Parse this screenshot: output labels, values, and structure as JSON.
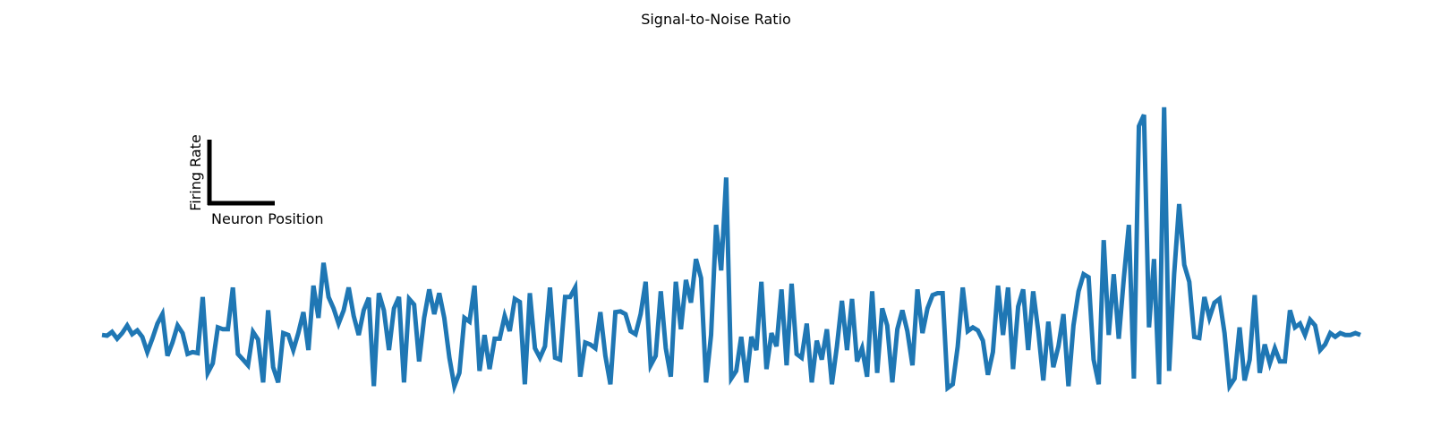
{
  "chart_data": {
    "type": "line",
    "title": "Signal-to-Noise Ratio",
    "xlabel": "Neuron Position",
    "ylabel": "Firing Rate",
    "axes_visible": false,
    "grid": false,
    "legend": "none",
    "scale_bar": {
      "x_label": "Neuron Position",
      "y_label": "Firing Rate",
      "color": "#000000",
      "placement": "upper-left"
    },
    "xlim": [
      0,
      250
    ],
    "ylim": [
      -1.6,
      7.6
    ],
    "series": [
      {
        "color": "#1f77b4",
        "x": [
          0,
          1,
          2,
          3,
          4,
          5,
          6,
          7,
          8,
          9,
          10,
          11,
          12,
          13,
          14,
          15,
          16,
          17,
          18,
          19,
          20,
          21,
          22,
          23,
          24,
          25,
          26,
          27,
          28,
          29,
          30,
          31,
          32,
          33,
          34,
          35,
          36,
          37,
          38,
          39,
          40,
          41,
          42,
          43,
          44,
          45,
          46,
          47,
          48,
          49,
          50,
          51,
          52,
          53,
          54,
          55,
          56,
          57,
          58,
          59,
          60,
          61,
          62,
          63,
          64,
          65,
          66,
          67,
          68,
          69,
          70,
          71,
          72,
          73,
          74,
          75,
          76,
          77,
          78,
          79,
          80,
          81,
          82,
          83,
          84,
          85,
          86,
          87,
          88,
          89,
          90,
          91,
          92,
          93,
          94,
          95,
          96,
          97,
          98,
          99,
          100,
          101,
          102,
          103,
          104,
          105,
          106,
          107,
          108,
          109,
          110,
          111,
          112,
          113,
          114,
          115,
          116,
          117,
          118,
          119,
          120,
          121,
          122,
          123,
          124,
          125,
          126,
          127,
          128,
          129,
          130,
          131,
          132,
          133,
          134,
          135,
          136,
          137,
          138,
          139,
          140,
          141,
          142,
          143,
          144,
          145,
          146,
          147,
          148,
          149,
          150,
          151,
          152,
          153,
          154,
          155,
          156,
          157,
          158,
          159,
          160,
          161,
          162,
          163,
          164,
          165,
          166,
          167,
          168,
          169,
          170,
          171,
          172,
          173,
          174,
          175,
          176,
          177,
          178,
          179,
          180,
          181,
          182,
          183,
          184,
          185,
          186,
          187,
          188,
          189,
          190,
          191,
          192,
          193,
          194,
          195,
          196,
          197,
          198,
          199,
          200,
          201,
          202,
          203,
          204,
          205,
          206,
          207,
          208,
          209,
          210,
          211,
          212,
          213,
          214,
          215,
          216,
          217,
          218,
          219,
          220,
          221,
          222,
          223,
          224,
          225,
          226,
          227,
          228,
          229,
          230,
          231,
          232,
          233,
          234,
          235,
          236,
          237,
          238,
          239,
          240,
          241,
          242,
          243,
          244,
          245,
          246,
          247,
          248,
          249,
          250
        ],
        "y": [
          0.0,
          -0.02,
          0.08,
          -0.1,
          0.05,
          0.25,
          0.02,
          0.12,
          -0.05,
          -0.45,
          -0.1,
          0.3,
          0.55,
          -0.55,
          -0.2,
          0.25,
          0.05,
          -0.5,
          -0.45,
          -0.48,
          1.0,
          -1.0,
          -0.75,
          0.2,
          0.15,
          0.15,
          1.25,
          -0.5,
          -0.65,
          -0.8,
          0.08,
          -0.12,
          -1.25,
          0.65,
          -0.85,
          -1.25,
          0.05,
          0.0,
          -0.4,
          0.05,
          0.6,
          -0.4,
          1.3,
          0.45,
          1.9,
          1.0,
          0.7,
          0.3,
          0.65,
          1.25,
          0.5,
          0.0,
          0.65,
          0.98,
          -1.35,
          1.1,
          0.65,
          -0.4,
          0.7,
          1.0,
          -1.25,
          0.95,
          0.8,
          -0.7,
          0.45,
          1.2,
          0.55,
          1.1,
          0.45,
          -0.6,
          -1.35,
          -1.0,
          0.45,
          0.35,
          1.3,
          -0.95,
          0.0,
          -0.9,
          -0.1,
          -0.1,
          0.5,
          0.1,
          0.95,
          0.87,
          -1.3,
          1.1,
          -0.35,
          -0.6,
          -0.3,
          1.25,
          -0.6,
          -0.65,
          1.0,
          1.0,
          1.25,
          -1.1,
          -0.2,
          -0.25,
          -0.35,
          0.6,
          -0.55,
          -1.3,
          0.6,
          0.62,
          0.55,
          0.1,
          0.02,
          0.55,
          1.4,
          -0.8,
          -0.55,
          1.15,
          -0.35,
          -1.1,
          1.4,
          0.15,
          1.45,
          0.85,
          2.0,
          1.5,
          -1.25,
          0.0,
          2.9,
          1.7,
          4.15,
          -1.15,
          -0.95,
          -0.05,
          -1.25,
          -0.05,
          -0.4,
          1.4,
          -0.9,
          0.05,
          -0.3,
          1.2,
          -0.8,
          1.35,
          -0.5,
          -0.6,
          0.3,
          -1.25,
          -0.15,
          -0.65,
          0.15,
          -1.3,
          -0.3,
          0.9,
          -0.4,
          0.95,
          -0.7,
          -0.35,
          -1.1,
          1.15,
          -1.0,
          0.7,
          0.25,
          -1.25,
          0.15,
          0.65,
          0.1,
          -0.8,
          1.2,
          0.05,
          0.7,
          1.05,
          1.1,
          1.1,
          -1.4,
          -1.3,
          -0.3,
          1.25,
          0.1,
          0.2,
          0.12,
          -0.15,
          -1.05,
          -0.45,
          1.3,
          0.0,
          1.25,
          -0.9,
          0.75,
          1.2,
          -0.4,
          1.15,
          0.1,
          -1.2,
          0.35,
          -0.85,
          -0.3,
          0.55,
          -1.35,
          0.25,
          1.15,
          1.6,
          1.52,
          -0.65,
          -1.3,
          2.5,
          0.0,
          1.6,
          -0.1,
          1.5,
          2.9,
          -1.15,
          5.5,
          5.8,
          0.2,
          2.0,
          -1.3,
          6.0,
          -0.95,
          1.6,
          3.45,
          1.85,
          1.4,
          -0.05,
          -0.08,
          1.0,
          0.45,
          0.85,
          0.95,
          0.05,
          -1.35,
          -1.15,
          0.2,
          -1.2,
          -0.65,
          1.05,
          -1.0,
          -0.25,
          -0.75,
          -0.35,
          -0.7,
          -0.7,
          0.65,
          0.2,
          0.3,
          0.0,
          0.4,
          0.25,
          -0.4,
          -0.25,
          0.05,
          -0.05,
          0.05,
          0.0,
          0.0,
          0.05,
          0.0
        ]
      }
    ]
  }
}
